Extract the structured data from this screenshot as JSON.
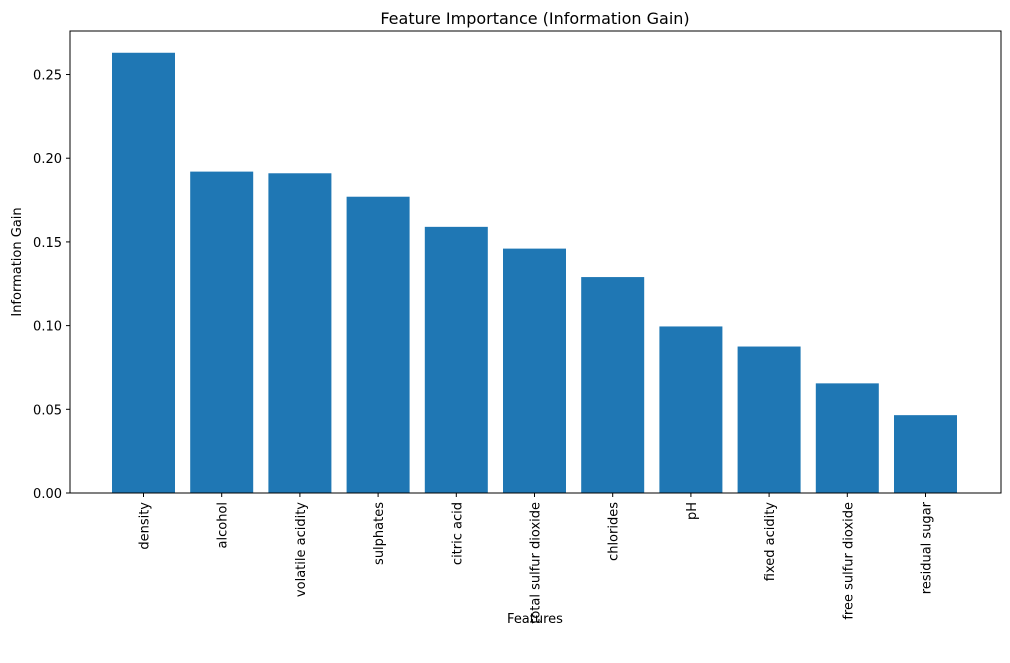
{
  "chart_data": {
    "type": "bar",
    "title": "Feature Importance (Information Gain)",
    "xlabel": "Features",
    "ylabel": "Information Gain",
    "categories": [
      "density",
      "alcohol",
      "volatile acidity",
      "sulphates",
      "citric acid",
      "total sulfur dioxide",
      "chlorides",
      "pH",
      "fixed acidity",
      "free sulfur dioxide",
      "residual sugar"
    ],
    "values": [
      0.263,
      0.192,
      0.191,
      0.177,
      0.159,
      0.146,
      0.129,
      0.0995,
      0.0875,
      0.0655,
      0.0465
    ],
    "ylim": [
      0,
      0.276
    ],
    "yticks": [
      0.0,
      0.05,
      0.1,
      0.15,
      0.2,
      0.25
    ],
    "ytick_labels": [
      "0.00",
      "0.05",
      "0.10",
      "0.15",
      "0.20",
      "0.25"
    ],
    "bar_color": "#1f77b4",
    "grid": false,
    "legend": "none"
  }
}
